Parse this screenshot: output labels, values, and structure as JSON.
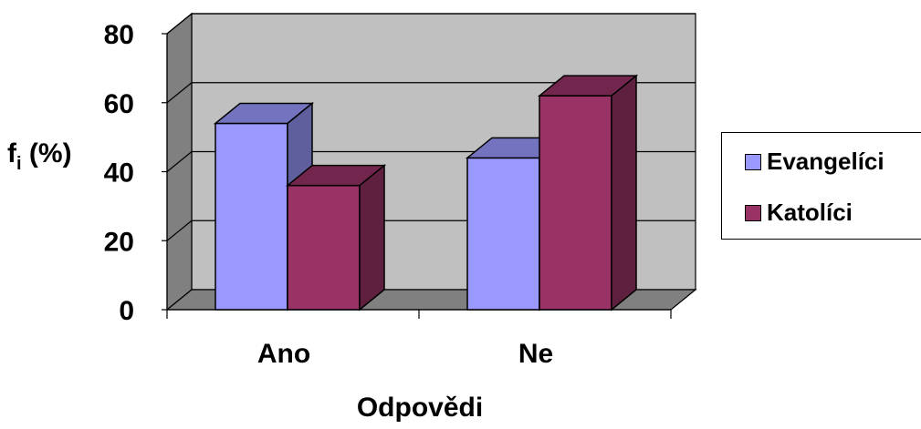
{
  "chart_data": {
    "type": "bar",
    "categories": [
      "Ano",
      "Ne"
    ],
    "series": [
      {
        "name": "Evangelíci",
        "values": [
          54,
          44
        ],
        "color": "#9999ff"
      },
      {
        "name": "Katolíci",
        "values": [
          36,
          62
        ],
        "color": "#993366"
      }
    ],
    "ylabel_main": "f",
    "ylabel_sub": "i",
    "ylabel_rest": " (%)",
    "xlabel": "Odpovědi",
    "ylim": [
      0,
      80
    ],
    "yticks": [
      0,
      20,
      40,
      60,
      80
    ],
    "grid": true,
    "legend_position": "right",
    "three_d": true
  }
}
